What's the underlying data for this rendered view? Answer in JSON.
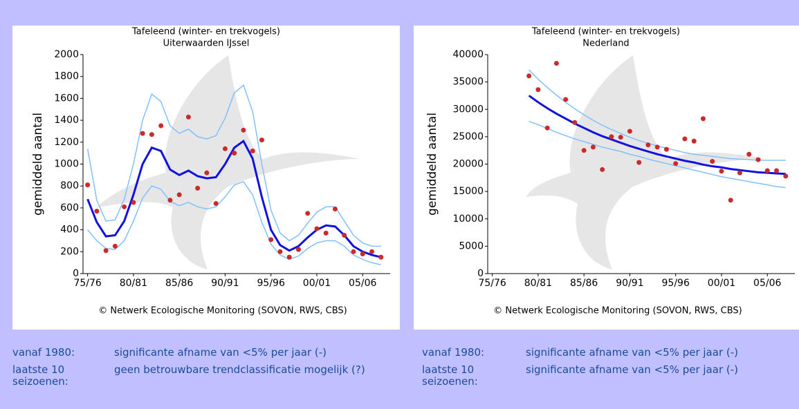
{
  "chart_data": [
    {
      "type": "line",
      "title": "Tafeleend (winter- en trekvogels)",
      "subtitle": "Uiterwaarden IJssel",
      "y_label": "gemiddeld aantal",
      "source": "© Netwerk Ecologische Monitoring (SOVON, RWS, CBS)",
      "x": [
        1975,
        1976,
        1977,
        1978,
        1979,
        1980,
        1981,
        1982,
        1983,
        1984,
        1985,
        1986,
        1987,
        1988,
        1989,
        1990,
        1991,
        1992,
        1993,
        1994,
        1995,
        1996,
        1997,
        1998,
        1999,
        2000,
        2001,
        2002,
        2003,
        2004,
        2005,
        2006,
        2007
      ],
      "xlim": [
        1974.5,
        2008
      ],
      "xticks": [
        {
          "value": 1975,
          "label": "75/76"
        },
        {
          "value": 1980,
          "label": "80/81"
        },
        {
          "value": 1985,
          "label": "85/86"
        },
        {
          "value": 1990,
          "label": "90/91"
        },
        {
          "value": 1995,
          "label": "95/96"
        },
        {
          "value": 2000,
          "label": "00/01"
        },
        {
          "value": 2005,
          "label": "05/06"
        }
      ],
      "ylim": [
        0,
        2000
      ],
      "yticks": [
        0,
        200,
        400,
        600,
        800,
        1000,
        1200,
        1400,
        1600,
        1800,
        2000
      ],
      "series": [
        {
          "type": "line",
          "color": "#80c0ff",
          "values": [
            1140,
            670,
            480,
            490,
            680,
            1000,
            1400,
            1640,
            1570,
            1350,
            1280,
            1320,
            1250,
            1230,
            1260,
            1420,
            1650,
            1720,
            1480,
            1000,
            580,
            370,
            300,
            350,
            460,
            560,
            610,
            610,
            480,
            350,
            280,
            250,
            250
          ]
        },
        {
          "type": "line",
          "color": "#80c0ff",
          "values": [
            400,
            300,
            230,
            220,
            300,
            480,
            690,
            800,
            770,
            660,
            620,
            650,
            610,
            590,
            610,
            700,
            810,
            840,
            720,
            470,
            270,
            170,
            130,
            160,
            230,
            280,
            300,
            300,
            250,
            170,
            130,
            100,
            80
          ]
        },
        {
          "type": "line",
          "color": "#1010e0",
          "values": [
            680,
            470,
            340,
            350,
            480,
            720,
            1000,
            1150,
            1120,
            950,
            900,
            940,
            890,
            870,
            880,
            1000,
            1150,
            1210,
            1050,
            700,
            400,
            260,
            210,
            250,
            330,
            400,
            440,
            430,
            350,
            250,
            200,
            170,
            150
          ]
        },
        {
          "type": "scatter",
          "color": "#cc2a2a",
          "values": [
            810,
            570,
            210,
            250,
            610,
            650,
            1280,
            1270,
            1350,
            670,
            720,
            1430,
            780,
            920,
            640,
            1140,
            1100,
            1310,
            1120,
            1220,
            310,
            200,
            150,
            220,
            550,
            410,
            370,
            590,
            350,
            200,
            180,
            200,
            150
          ]
        }
      ]
    },
    {
      "type": "line",
      "title": "Tafeleend (winter- en trekvogels)",
      "subtitle": "Nederland",
      "y_label": "gemiddeld aantal",
      "source": "© Netwerk Ecologische Monitoring (SOVON, RWS, CBS)",
      "x": [
        1979,
        1980,
        1981,
        1982,
        1983,
        1984,
        1985,
        1986,
        1987,
        1988,
        1989,
        1990,
        1991,
        1992,
        1993,
        1994,
        1995,
        1996,
        1997,
        1998,
        1999,
        2000,
        2001,
        2002,
        2003,
        2004,
        2005,
        2006,
        2007
      ],
      "xlim": [
        1974.5,
        2008
      ],
      "xticks": [
        {
          "value": 1975,
          "label": "75/76"
        },
        {
          "value": 1980,
          "label": "80/81"
        },
        {
          "value": 1985,
          "label": "85/86"
        },
        {
          "value": 1990,
          "label": "90/91"
        },
        {
          "value": 1995,
          "label": "95/96"
        },
        {
          "value": 2000,
          "label": "00/01"
        },
        {
          "value": 2005,
          "label": "05/06"
        }
      ],
      "ylim": [
        0,
        40000
      ],
      "yticks": [
        0,
        5000,
        10000,
        15000,
        20000,
        25000,
        30000,
        35000,
        40000
      ],
      "series": [
        {
          "type": "line",
          "color": "#80c0ff",
          "values": [
            37200,
            35500,
            34000,
            32600,
            31300,
            30100,
            29000,
            28000,
            27100,
            26300,
            25600,
            24900,
            24300,
            23800,
            23300,
            22900,
            22500,
            22100,
            21800,
            21600,
            21400,
            21200,
            21000,
            20900,
            20800,
            20700,
            20700,
            20700,
            20700
          ]
        },
        {
          "type": "line",
          "color": "#80c0ff",
          "values": [
            27800,
            27200,
            26500,
            25800,
            25200,
            24600,
            24100,
            23600,
            23100,
            22700,
            22300,
            21800,
            21400,
            20900,
            20500,
            20100,
            19700,
            19300,
            18900,
            18500,
            18100,
            17700,
            17400,
            17100,
            16800,
            16500,
            16200,
            15900,
            15700
          ]
        },
        {
          "type": "line",
          "color": "#1010e0",
          "values": [
            32500,
            31300,
            30200,
            29200,
            28300,
            27400,
            26600,
            25800,
            25100,
            24500,
            23900,
            23300,
            22800,
            22300,
            21800,
            21400,
            21000,
            20600,
            20300,
            19900,
            19600,
            19400,
            19100,
            18900,
            18700,
            18500,
            18400,
            18300,
            18200
          ]
        },
        {
          "type": "scatter",
          "color": "#cc2a2a",
          "values": [
            36100,
            33600,
            26600,
            38400,
            31800,
            27600,
            22500,
            23100,
            19000,
            25000,
            24900,
            26000,
            20300,
            23500,
            23100,
            22700,
            20100,
            24600,
            24200,
            28300,
            20500,
            18700,
            13400,
            18400,
            21800,
            20800,
            18800,
            18800,
            17800
          ]
        }
      ]
    }
  ],
  "trends": [
    {
      "rows": [
        {
          "label": "vanaf 1980:",
          "text": "significante afname van <5% per jaar (-)"
        },
        {
          "label": "laatste 10 seizoenen:",
          "text": "geen betrouwbare trendclassificatie mogelijk (?)"
        }
      ]
    },
    {
      "rows": [
        {
          "label": "vanaf 1980:",
          "text": "significante afname van <5% per jaar (-)"
        },
        {
          "label": "laatste 10 seizoenen:",
          "text": "significante afname van <5% per jaar (-)"
        }
      ]
    }
  ]
}
